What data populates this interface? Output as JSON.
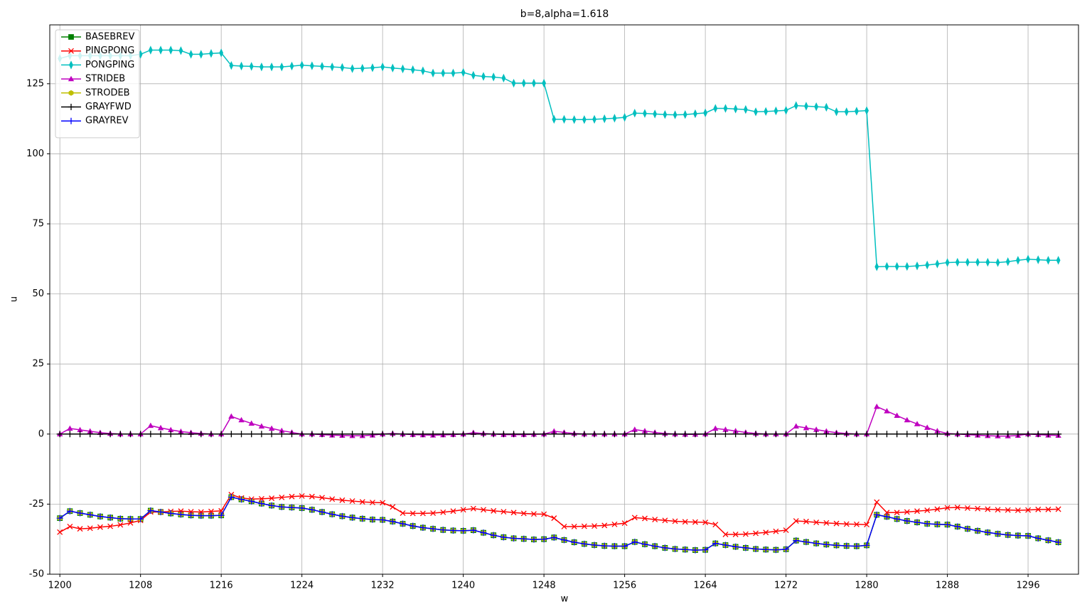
{
  "chart_data": {
    "type": "line",
    "title": "b=8,alpha=1.618",
    "x_label": "w",
    "y_label": "u",
    "x": [
      1200,
      1201,
      1202,
      1203,
      1204,
      1205,
      1206,
      1207,
      1208,
      1209,
      1210,
      1211,
      1212,
      1213,
      1214,
      1215,
      1216,
      1217,
      1218,
      1219,
      1220,
      1221,
      1222,
      1223,
      1224,
      1225,
      1226,
      1227,
      1228,
      1229,
      1230,
      1231,
      1232,
      1233,
      1234,
      1235,
      1236,
      1237,
      1238,
      1239,
      1240,
      1241,
      1242,
      1243,
      1244,
      1245,
      1246,
      1247,
      1248,
      1249,
      1250,
      1251,
      1252,
      1253,
      1254,
      1255,
      1256,
      1257,
      1258,
      1259,
      1260,
      1261,
      1262,
      1263,
      1264,
      1265,
      1266,
      1267,
      1268,
      1269,
      1270,
      1271,
      1272,
      1273,
      1274,
      1275,
      1276,
      1277,
      1278,
      1279,
      1280,
      1281,
      1282,
      1283,
      1284,
      1285,
      1286,
      1287,
      1288,
      1289,
      1290,
      1291,
      1292,
      1293,
      1294,
      1295,
      1296,
      1297,
      1298,
      1299
    ],
    "series": [
      {
        "name": "BASEBREV",
        "color": "#008000",
        "marker": "square",
        "values": [
          -30,
          -27.5,
          -28.2,
          -28.8,
          -29.4,
          -29.8,
          -30.2,
          -30.3,
          -30.3,
          -27.3,
          -27.8,
          -28.3,
          -28.7,
          -29,
          -29.1,
          -29.1,
          -29,
          -22.5,
          -23.3,
          -24,
          -24.8,
          -25.5,
          -26,
          -26.2,
          -26.4,
          -27,
          -27.8,
          -28.6,
          -29.3,
          -29.8,
          -30.2,
          -30.5,
          -30.6,
          -31.2,
          -32,
          -32.8,
          -33.4,
          -33.8,
          -34.2,
          -34.4,
          -34.5,
          -34.3,
          -35.2,
          -36.1,
          -36.8,
          -37.2,
          -37.4,
          -37.6,
          -37.5,
          -36.9,
          -37.8,
          -38.6,
          -39.2,
          -39.6,
          -39.9,
          -40,
          -40,
          -38.5,
          -39.3,
          -40,
          -40.6,
          -41,
          -41.2,
          -41.4,
          -41.3,
          -39,
          -39.6,
          -40.2,
          -40.6,
          -41,
          -41.2,
          -41.3,
          -41.1,
          -38,
          -38.5,
          -39,
          -39.4,
          -39.7,
          -39.9,
          -40,
          -39.7,
          -28.8,
          -29.5,
          -30.3,
          -31,
          -31.5,
          -32,
          -32.2,
          -32.3,
          -33,
          -33.8,
          -34.5,
          -35.1,
          -35.6,
          -36,
          -36.2,
          -36.3,
          -37.2,
          -37.9,
          -38.6
        ]
      },
      {
        "name": "PINGPONG",
        "color": "#ff0000",
        "marker": "x",
        "values": [
          -35,
          -33,
          -33.8,
          -33.6,
          -33.2,
          -32.9,
          -32.4,
          -31.7,
          -30.8,
          -27.8,
          -27.8,
          -27.6,
          -27.5,
          -27.7,
          -27.8,
          -27.6,
          -27.4,
          -21.6,
          -22.8,
          -23.2,
          -23.1,
          -22.9,
          -22.6,
          -22.3,
          -22.1,
          -22.3,
          -22.7,
          -23.2,
          -23.6,
          -23.9,
          -24.2,
          -24.4,
          -24.5,
          -26,
          -28.2,
          -28.3,
          -28.3,
          -28.2,
          -27.9,
          -27.5,
          -27,
          -26.6,
          -27,
          -27.4,
          -27.7,
          -28,
          -28.3,
          -28.5,
          -28.6,
          -30,
          -33,
          -33,
          -32.9,
          -32.8,
          -32.6,
          -32.2,
          -31.8,
          -29.8,
          -30.1,
          -30.5,
          -30.8,
          -31.1,
          -31.3,
          -31.4,
          -31.5,
          -32.3,
          -35.8,
          -35.8,
          -35.7,
          -35.4,
          -35.1,
          -34.7,
          -34.3,
          -31,
          -31.2,
          -31.5,
          -31.7,
          -31.9,
          -32.1,
          -32.2,
          -32.3,
          -24.3,
          -28,
          -28,
          -27.8,
          -27.5,
          -27.2,
          -26.8,
          -26.3,
          -26.2,
          -26.4,
          -26.6,
          -26.8,
          -27,
          -27.1,
          -27.2,
          -27.1,
          -26.9,
          -26.9,
          -26.8
        ]
      },
      {
        "name": "PONGPING",
        "color": "#00bfbf",
        "marker": "thin_diamond",
        "values": [
          134,
          135,
          135,
          135,
          135,
          135,
          135,
          135,
          135.5,
          137,
          137,
          137,
          136.8,
          135.5,
          135.5,
          135.8,
          136,
          131.5,
          131.3,
          131.2,
          131,
          131,
          131,
          131.3,
          131.6,
          131.4,
          131.2,
          131,
          130.8,
          130.4,
          130.5,
          130.7,
          131,
          130.6,
          130.3,
          130,
          129.6,
          128.8,
          128.8,
          128.8,
          129,
          128,
          127.6,
          127.4,
          127,
          125.2,
          125.2,
          125.2,
          125.2,
          112.3,
          112.3,
          112.2,
          112.2,
          112.3,
          112.5,
          112.7,
          113,
          114.5,
          114.4,
          114.2,
          114,
          113.9,
          114,
          114.3,
          114.6,
          116.2,
          116.2,
          116,
          115.8,
          115,
          115.1,
          115.3,
          115.5,
          117.2,
          117,
          116.8,
          116.6,
          115,
          115,
          115.2,
          115.4,
          59.7,
          59.8,
          59.8,
          59.8,
          60,
          60.3,
          60.7,
          61.2,
          61.3,
          61.3,
          61.3,
          61.3,
          61.2,
          61.5,
          62,
          62.4,
          62.2,
          62,
          62
        ]
      },
      {
        "name": "STRIDEB",
        "color": "#bf00bf",
        "marker": "triangle",
        "values": [
          0,
          2,
          1.5,
          1,
          0.5,
          0.2,
          0,
          0,
          0,
          3,
          2.2,
          1.5,
          0.9,
          0.5,
          0.2,
          0,
          0,
          6.3,
          5,
          3.8,
          2.8,
          2,
          1.2,
          0.6,
          0,
          0,
          -0.2,
          -0.4,
          -0.5,
          -0.6,
          -0.6,
          -0.4,
          0,
          0.2,
          0,
          -0.2,
          -0.3,
          -0.4,
          -0.3,
          -0.2,
          0,
          0.5,
          0.2,
          0,
          -0.2,
          -0.2,
          -0.2,
          -0.1,
          0,
          1,
          0.6,
          0.2,
          0,
          0,
          0,
          0,
          0,
          1.6,
          1.1,
          0.6,
          0.2,
          0,
          -0.1,
          -0.1,
          0,
          2,
          1.6,
          1.1,
          0.6,
          0.2,
          0,
          0,
          0,
          2.8,
          2.2,
          1.6,
          1,
          0.5,
          0.2,
          0,
          0,
          9.8,
          8.2,
          6.6,
          5,
          3.6,
          2.3,
          1.1,
          0.2,
          0,
          -0.2,
          -0.4,
          -0.6,
          -0.7,
          -0.7,
          -0.5,
          0,
          -0.2,
          -0.4,
          -0.5
        ]
      },
      {
        "name": "STRODEB",
        "color": "#bfbf00",
        "marker": "hexagon",
        "values": [
          -30,
          -27.5,
          -28.2,
          -28.8,
          -29.4,
          -29.8,
          -30.2,
          -30.3,
          -30.3,
          -27.3,
          -27.8,
          -28.3,
          -28.7,
          -29,
          -29.1,
          -29.1,
          -29,
          -22.5,
          -23.3,
          -24,
          -24.8,
          -25.5,
          -26,
          -26.2,
          -26.4,
          -27,
          -27.8,
          -28.6,
          -29.3,
          -29.8,
          -30.2,
          -30.5,
          -30.6,
          -31.2,
          -32,
          -32.8,
          -33.4,
          -33.8,
          -34.2,
          -34.4,
          -34.5,
          -34.3,
          -35.2,
          -36.1,
          -36.8,
          -37.2,
          -37.4,
          -37.6,
          -37.5,
          -36.9,
          -37.8,
          -38.6,
          -39.2,
          -39.6,
          -39.9,
          -40,
          -40,
          -38.5,
          -39.3,
          -40,
          -40.6,
          -41,
          -41.2,
          -41.4,
          -41.3,
          -39,
          -39.6,
          -40.2,
          -40.6,
          -41,
          -41.2,
          -41.3,
          -41.1,
          -38,
          -38.5,
          -39,
          -39.4,
          -39.7,
          -39.9,
          -40,
          -39.7,
          -28.8,
          -29.5,
          -30.3,
          -31,
          -31.5,
          -32,
          -32.2,
          -32.3,
          -33,
          -33.8,
          -34.5,
          -35.1,
          -35.6,
          -36,
          -36.2,
          -36.3,
          -37.2,
          -37.9,
          -38.6
        ]
      },
      {
        "name": "GRAYFWD",
        "color": "#000000",
        "marker": "plus",
        "values": [
          0,
          0,
          0,
          0,
          0,
          0,
          0,
          0,
          0,
          0,
          0,
          0,
          0,
          0,
          0,
          0,
          0,
          0,
          0,
          0,
          0,
          0,
          0,
          0,
          0,
          0,
          0,
          0,
          0,
          0,
          0,
          0,
          0,
          0,
          0,
          0,
          0,
          0,
          0,
          0,
          0,
          0,
          0,
          0,
          0,
          0,
          0,
          0,
          0,
          0,
          0,
          0,
          0,
          0,
          0,
          0,
          0,
          0,
          0,
          0,
          0,
          0,
          0,
          0,
          0,
          0,
          0,
          0,
          0,
          0,
          0,
          0,
          0,
          0,
          0,
          0,
          0,
          0,
          0,
          0,
          0,
          0,
          0,
          0,
          0,
          0,
          0,
          0,
          0,
          0,
          0,
          0,
          0,
          0,
          0,
          0,
          0,
          0,
          0,
          0
        ]
      },
      {
        "name": "GRAYREV",
        "color": "#0000ff",
        "marker": "plus",
        "values": [
          -30,
          -27.5,
          -28.2,
          -28.8,
          -29.4,
          -29.8,
          -30.2,
          -30.3,
          -30.3,
          -27.3,
          -27.8,
          -28.3,
          -28.7,
          -29,
          -29.1,
          -29.1,
          -29,
          -22.5,
          -23.3,
          -24,
          -24.8,
          -25.5,
          -26,
          -26.2,
          -26.4,
          -27,
          -27.8,
          -28.6,
          -29.3,
          -29.8,
          -30.2,
          -30.5,
          -30.6,
          -31.2,
          -32,
          -32.8,
          -33.4,
          -33.8,
          -34.2,
          -34.4,
          -34.5,
          -34.3,
          -35.2,
          -36.1,
          -36.8,
          -37.2,
          -37.4,
          -37.6,
          -37.5,
          -36.9,
          -37.8,
          -38.6,
          -39.2,
          -39.6,
          -39.9,
          -40,
          -40,
          -38.5,
          -39.3,
          -40,
          -40.6,
          -41,
          -41.2,
          -41.4,
          -41.3,
          -39,
          -39.6,
          -40.2,
          -40.6,
          -41,
          -41.2,
          -41.3,
          -41.1,
          -38,
          -38.5,
          -39,
          -39.4,
          -39.7,
          -39.9,
          -40,
          -39.7,
          -28.8,
          -29.5,
          -30.3,
          -31,
          -31.5,
          -32,
          -32.2,
          -32.3,
          -33,
          -33.8,
          -34.5,
          -35.1,
          -35.6,
          -36,
          -36.2,
          -36.3,
          -37.2,
          -37.9,
          -38.6
        ]
      }
    ],
    "xlim": [
      1199,
      1301
    ],
    "ylim": [
      -50,
      146
    ],
    "xticks": [
      1200,
      1208,
      1216,
      1224,
      1232,
      1240,
      1248,
      1256,
      1264,
      1272,
      1280,
      1288,
      1296
    ],
    "yticks": [
      -50,
      -25,
      0,
      25,
      50,
      75,
      100,
      125
    ],
    "grid": true,
    "legend": "upper left"
  }
}
